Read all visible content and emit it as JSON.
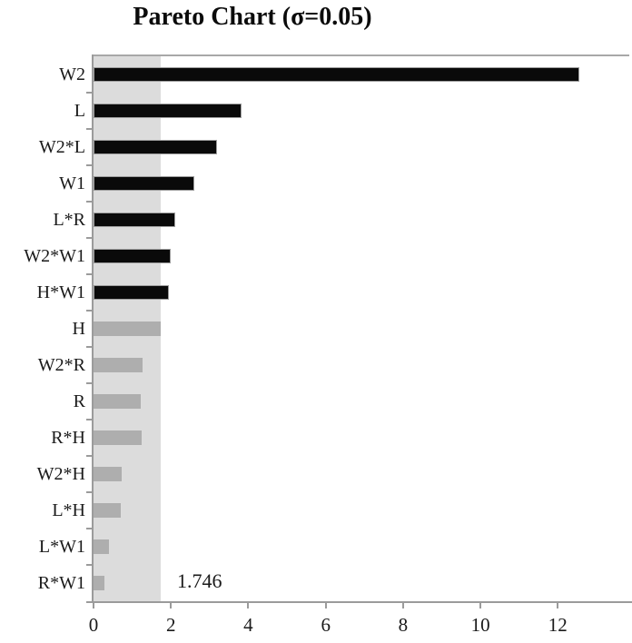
{
  "title": "Pareto Chart (σ=0.05)",
  "chart_data": {
    "type": "bar",
    "orientation": "horizontal",
    "title": "Pareto Chart (σ=0.05)",
    "categories": [
      "W2",
      "L",
      "W2*L",
      "W1",
      "L*R",
      "W2*W1",
      "H*W1",
      "H",
      "W2*R",
      "R",
      "R*H",
      "W2*H",
      "L*H",
      "L*W1",
      "R*W1"
    ],
    "values": [
      12.55,
      3.83,
      3.18,
      2.6,
      2.1,
      2.0,
      1.94,
      1.74,
      1.26,
      1.21,
      1.24,
      0.72,
      0.7,
      0.39,
      0.29
    ],
    "significant": [
      true,
      true,
      true,
      true,
      true,
      true,
      true,
      false,
      false,
      false,
      false,
      false,
      false,
      false,
      false
    ],
    "threshold": 1.746,
    "threshold_label": "1.746",
    "x_ticks": [
      0,
      2,
      4,
      6,
      8,
      10,
      12
    ],
    "xlim": [
      0,
      13.8
    ],
    "ylabel": "",
    "xlabel": "",
    "grid": false,
    "legend": null,
    "colors": {
      "significant_bar": "#0a0a0a",
      "significant_bar_border": "#9e9e9e",
      "insignificant_bar": "#aeaeae",
      "threshold_band": "#dcdcdc",
      "axis_line": "#9b9b9b",
      "text": "#1a1a1a"
    }
  }
}
